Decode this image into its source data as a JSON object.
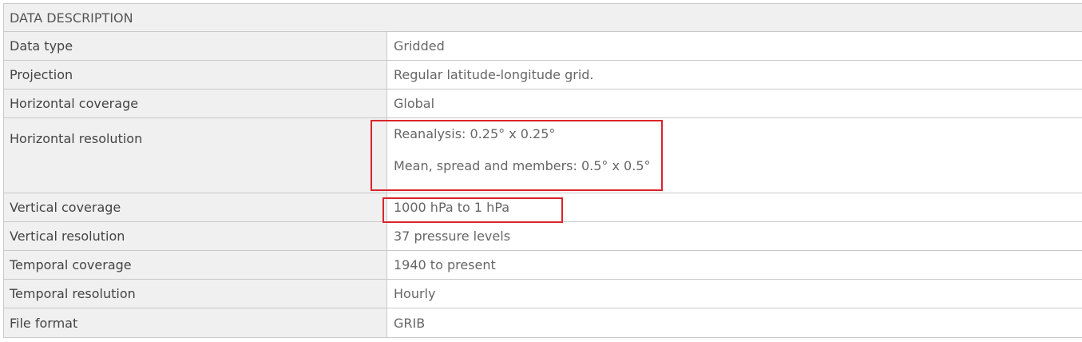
{
  "table": {
    "header": "DATA DESCRIPTION",
    "rows": [
      {
        "label": "Data type",
        "value": "Gridded"
      },
      {
        "label": "Projection",
        "value": "Regular latitude-longitude grid."
      },
      {
        "label": "Horizontal coverage",
        "value": "Global"
      },
      {
        "label": "Horizontal resolution",
        "values": [
          "Reanalysis: 0.25° x 0.25°",
          "Mean, spread and members: 0.5° x 0.5°"
        ]
      },
      {
        "label": "Vertical coverage",
        "value": "1000 hPa to 1 hPa"
      },
      {
        "label": "Vertical resolution",
        "value": "37 pressure levels"
      },
      {
        "label": "Temporal coverage",
        "value": "1940 to present"
      },
      {
        "label": "Temporal resolution",
        "value": "Hourly"
      },
      {
        "label": "File format",
        "value": "GRIB"
      }
    ]
  },
  "highlight_color": "#d9252a"
}
